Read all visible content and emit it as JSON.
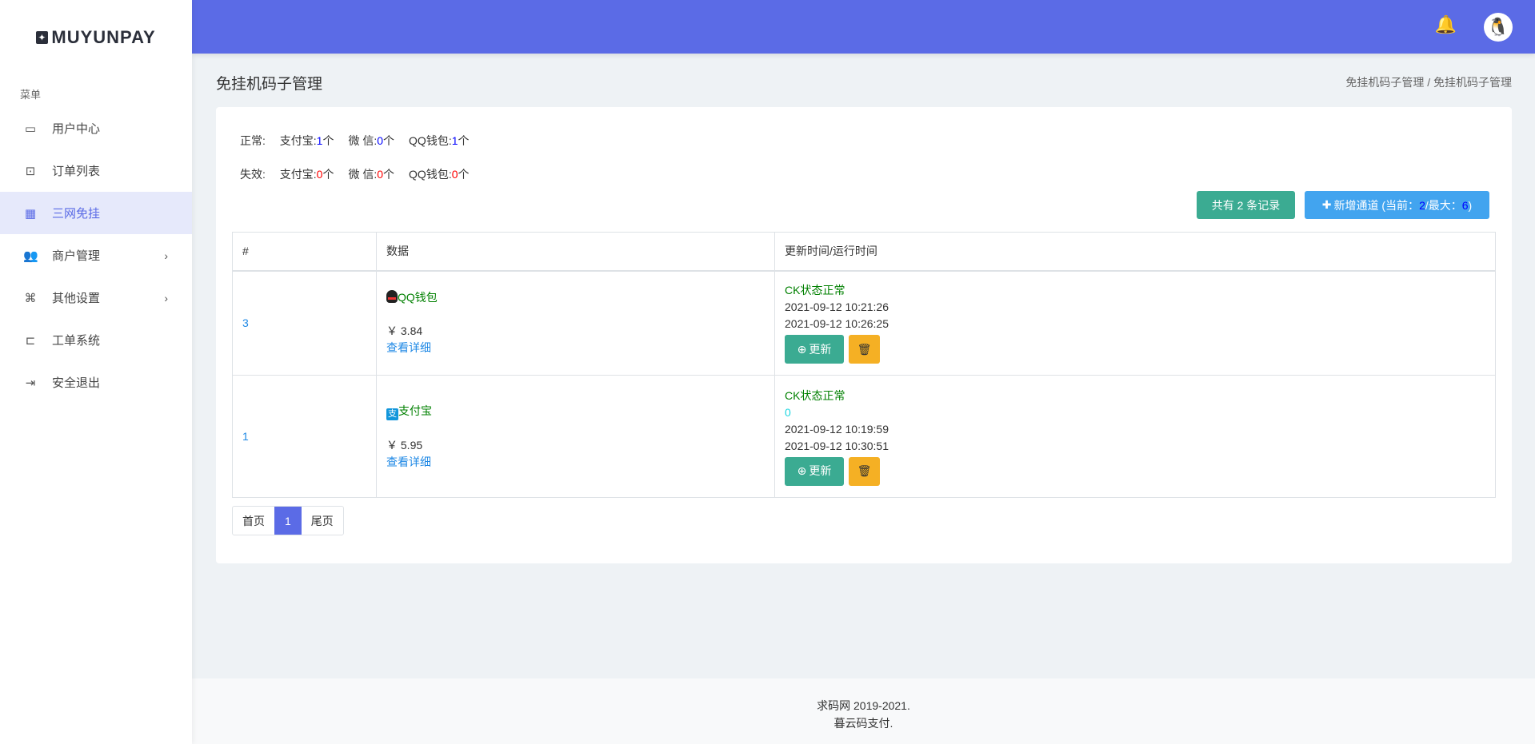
{
  "logo": {
    "text": "MUYUNPAY"
  },
  "sidebar": {
    "title": "菜单",
    "items": [
      {
        "label": "用户中心",
        "icon": "monitor-icon"
      },
      {
        "label": "订单列表",
        "icon": "dollar-icon"
      },
      {
        "label": "三网免挂",
        "icon": "qrcode-icon",
        "active": true
      },
      {
        "label": "商户管理",
        "icon": "users-icon",
        "has_children": true
      },
      {
        "label": "其他设置",
        "icon": "command-icon",
        "has_children": true
      },
      {
        "label": "工单系统",
        "icon": "ticket-add-icon"
      },
      {
        "label": "安全退出",
        "icon": "logout-icon"
      }
    ]
  },
  "header": {
    "bell_icon": "bell-icon",
    "avatar_icon": "qq-penguin-icon",
    "color": "#5b6be6"
  },
  "page": {
    "title": "免挂机码子管理",
    "breadcrumb": [
      "免挂机码子管理",
      "免挂机码子管理"
    ],
    "breadcrumb_sep": "/"
  },
  "stats": {
    "normal": {
      "label": "正常:",
      "alipay_label": "支付宝:",
      "alipay": "1",
      "wechat_label": "微 信:",
      "wechat": "0",
      "qq_label": "QQ钱包:",
      "qq": "1",
      "unit": "个"
    },
    "failed": {
      "label": "失效:",
      "alipay_label": "支付宝:",
      "alipay": "0",
      "wechat_label": "微 信:",
      "wechat": "0",
      "qq_label": "QQ钱包:",
      "qq": "0",
      "unit": "个"
    }
  },
  "actions": {
    "total_label": "共有 2 条记录",
    "add_prefix": "新增通道 (当前：",
    "current": "2",
    "max_prefix": "/最大：",
    "max": "6",
    "add_suffix": ")"
  },
  "table": {
    "headers": [
      "#",
      "数据",
      "更新时间/运行时间"
    ],
    "rows": [
      {
        "id": "3",
        "type": "QQ钱包",
        "type_icon": "qq-icon",
        "amount": "￥ 3.84",
        "detail": "查看详细",
        "status": "CK状态正常",
        "extra": null,
        "time1": "2021-09-12 10:21:26",
        "time2": "2021-09-12 10:26:25",
        "update_label": "更新"
      },
      {
        "id": "1",
        "type": "支付宝",
        "type_icon": "alipay-icon",
        "amount": "￥ 5.95",
        "detail": "查看详细",
        "status": "CK状态正常",
        "extra": "0",
        "time1": "2021-09-12 10:19:59",
        "time2": "2021-09-12 10:30:51",
        "update_label": "更新"
      }
    ]
  },
  "pagination": {
    "first": "首页",
    "current": "1",
    "last": "尾页"
  },
  "footer": {
    "line1": "求码网 2019-2021.",
    "line2": "暮云码支付."
  }
}
